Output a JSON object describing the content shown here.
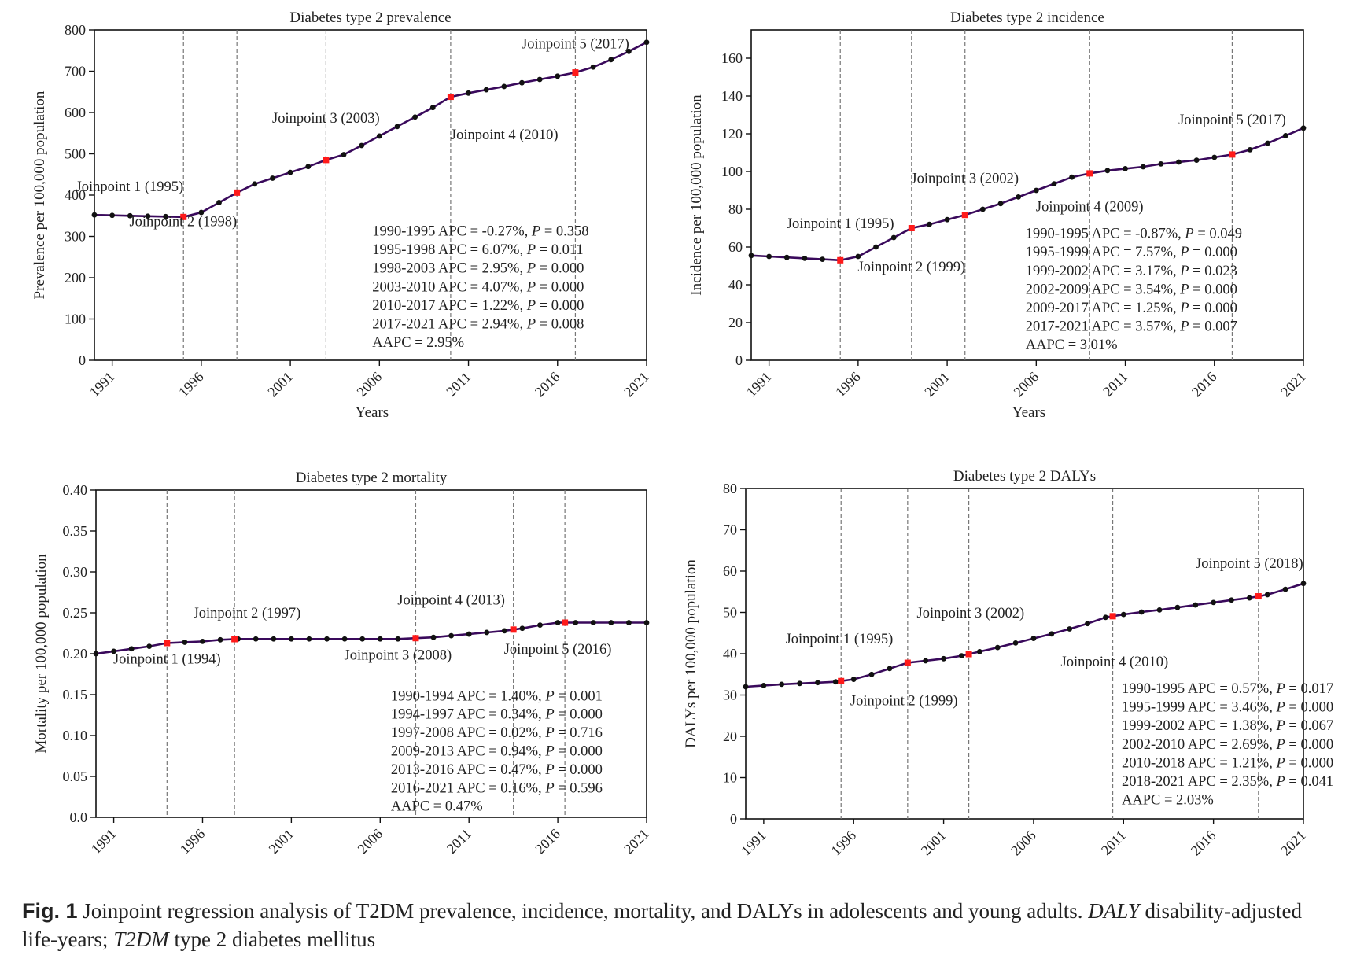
{
  "colors": {
    "line": "#3a0a5c",
    "point": "#111111",
    "joinpoint": "#ff1a1a",
    "grid": "#777777"
  },
  "caption": {
    "label": "Fig. 1",
    "text1": "  Joinpoint regression analysis of T2DM prevalence, incidence, mortality, and DALYs in adolescents and young adults. ",
    "abbr1": "DALY",
    "text2": " disability-adjusted life-years; ",
    "abbr2": "T2DM",
    "text3": " type 2 diabetes mellitus"
  },
  "chart_data": [
    {
      "type": "line",
      "title": "Diabetes type 2 prevalence",
      "xlabel": "Years",
      "ylabel": "Prevalence per 100,000 population",
      "xlim": [
        1990,
        2021
      ],
      "ylim": [
        0,
        800
      ],
      "yticks": [
        0,
        100,
        200,
        300,
        400,
        500,
        600,
        700,
        800
      ],
      "ytick_labels": [
        "0",
        "100",
        "200",
        "300",
        "400",
        "500",
        "600",
        "700",
        "800"
      ],
      "xticks": [
        1991,
        1996,
        2001,
        2006,
        2011,
        2016,
        2021
      ],
      "x": [
        1990,
        1991,
        1992,
        1993,
        1994,
        1995,
        1996,
        1997,
        1998,
        1999,
        2000,
        2001,
        2002,
        2003,
        2004,
        2005,
        2006,
        2007,
        2008,
        2009,
        2010,
        2011,
        2012,
        2013,
        2014,
        2015,
        2016,
        2017,
        2018,
        2019,
        2020,
        2021
      ],
      "values": [
        352,
        351,
        350,
        349,
        348,
        347,
        358,
        382,
        406,
        427,
        441,
        455,
        469,
        485,
        498,
        520,
        543,
        566,
        589,
        612,
        638,
        647,
        655,
        663,
        672,
        680,
        688,
        697,
        710,
        728,
        748,
        770
      ],
      "joinpoints": [
        1995,
        1998,
        2003,
        2010,
        2017
      ],
      "joinpoint_labels": [
        {
          "text": "Joinpoint 1 (1995)",
          "x": 1995,
          "y": 410,
          "anchor": "end"
        },
        {
          "text": "Joinpoint 2 (1998)",
          "x": 1998,
          "y": 325,
          "anchor": "end"
        },
        {
          "text": "Joinpoint 3 (2003)",
          "x": 2003,
          "y": 575,
          "anchor": "middle"
        },
        {
          "text": "Joinpoint 4 (2010)",
          "x": 2010,
          "y": 535,
          "anchor": "start"
        },
        {
          "text": "Joinpoint 5 (2017)",
          "x": 2017,
          "y": 755,
          "anchor": "middle"
        }
      ],
      "stats": {
        "x": 2005.6,
        "y_top": 302,
        "step": 45,
        "lines": [
          {
            "range": "1990-1995",
            "apc": "-0.27%",
            "p": "0.358"
          },
          {
            "range": "1995-1998",
            "apc": "6.07%",
            "p": "0.011"
          },
          {
            "range": "1998-2003",
            "apc": "2.95%",
            "p": "0.000"
          },
          {
            "range": "2003-2010",
            "apc": "4.07%",
            "p": "0.000"
          },
          {
            "range": "2010-2017",
            "apc": "1.22%",
            "p": "0.000"
          },
          {
            "range": "2017-2021",
            "apc": "2.94%",
            "p": "0.008"
          }
        ],
        "aapc": "AAPC = 2.95%"
      }
    },
    {
      "type": "line",
      "title": "Diabetes type 2 incidence",
      "xlabel": "Years",
      "ylabel": "Incidence per 100,000 population",
      "xlim": [
        1990,
        2021
      ],
      "ylim": [
        0,
        175
      ],
      "yticks": [
        0,
        20,
        40,
        60,
        80,
        100,
        120,
        140,
        160
      ],
      "ytick_labels": [
        "0",
        "20",
        "40",
        "60",
        "80",
        "100",
        "120",
        "140",
        "160"
      ],
      "xticks": [
        1991,
        1996,
        2001,
        2006,
        2011,
        2016,
        2021
      ],
      "x": [
        1990,
        1991,
        1992,
        1993,
        1994,
        1995,
        1996,
        1997,
        1998,
        1999,
        2000,
        2001,
        2002,
        2003,
        2004,
        2005,
        2006,
        2007,
        2008,
        2009,
        2010,
        2011,
        2012,
        2013,
        2014,
        2015,
        2016,
        2017,
        2018,
        2019,
        2020,
        2021
      ],
      "values": [
        55.5,
        55,
        54.5,
        54,
        53.5,
        53,
        55,
        60,
        65,
        70,
        72,
        74.5,
        77,
        80,
        83,
        86.5,
        90,
        93.5,
        97,
        99,
        100.5,
        101.5,
        102.5,
        104,
        105,
        106,
        107.5,
        109,
        111.5,
        115,
        119,
        123
      ],
      "joinpoints": [
        1995,
        1999,
        2002,
        2009,
        2017
      ],
      "joinpoint_labels": [
        {
          "text": "Joinpoint 1 (1995)",
          "x": 1995,
          "y": 70,
          "anchor": "middle"
        },
        {
          "text": "Joinpoint 2 (1999)",
          "x": 1999,
          "y": 47,
          "anchor": "middle"
        },
        {
          "text": "Joinpoint 3 (2002)",
          "x": 2002,
          "y": 94,
          "anchor": "middle"
        },
        {
          "text": "Joinpoint 4 (2009)",
          "x": 2009,
          "y": 79,
          "anchor": "middle"
        },
        {
          "text": "Joinpoint 5 (2017)",
          "x": 2017,
          "y": 125,
          "anchor": "middle"
        }
      ],
      "stats": {
        "x": 2005.4,
        "y_top": 64.7,
        "step": 9.8,
        "lines": [
          {
            "range": "1990-1995",
            "apc": "-0.87%",
            "p": "0.049"
          },
          {
            "range": "1995-1999",
            "apc": "7.57%",
            "p": "0.000"
          },
          {
            "range": "1999-2002",
            "apc": "3.17%",
            "p": "0.023"
          },
          {
            "range": "2002-2009",
            "apc": "3.54%",
            "p": "0.000"
          },
          {
            "range": "2009-2017",
            "apc": "1.25%",
            "p": "0.000"
          },
          {
            "range": "2017-2021",
            "apc": "3.57%",
            "p": "0.007"
          }
        ],
        "aapc": "AAPC = 3.01%"
      }
    },
    {
      "type": "line",
      "title": "Diabetes type 2 mortality",
      "xlabel": "",
      "ylabel": "Mortality per 100,000 population",
      "xlim": [
        1990,
        2021
      ],
      "ylim": [
        0,
        0.4
      ],
      "yticks": [
        0,
        0.05,
        0.1,
        0.15,
        0.2,
        0.25,
        0.3,
        0.35,
        0.4
      ],
      "ytick_labels": [
        "0.0",
        "0.05",
        "0.10",
        "0.15",
        "0.20",
        "0.25",
        "0.30",
        "0.35",
        "0.40"
      ],
      "xticks": [
        1991,
        1996,
        2001,
        2006,
        2011,
        2016,
        2021
      ],
      "x": [
        1990,
        1991,
        1992,
        1993,
        1994,
        1995,
        1996,
        1997,
        1998,
        1999,
        2000,
        2001,
        2002,
        2003,
        2004,
        2005,
        2006,
        2007,
        2008,
        2009,
        2010,
        2011,
        2012,
        2013,
        2014,
        2015,
        2016,
        2017,
        2018,
        2019,
        2020,
        2021
      ],
      "values": [
        0.2,
        0.203,
        0.206,
        0.209,
        0.213,
        0.214,
        0.215,
        0.217,
        0.218,
        0.218,
        0.218,
        0.218,
        0.218,
        0.218,
        0.218,
        0.218,
        0.218,
        0.218,
        0.219,
        0.22,
        0.222,
        0.224,
        0.226,
        0.228,
        0.231,
        0.235,
        0.238,
        0.238,
        0.238,
        0.238,
        0.238,
        0.238
      ],
      "joinpoints": [
        1994,
        1997.8,
        2008,
        2013.5,
        2016.4
      ],
      "joinpoint_labels": [
        {
          "text": "Joinpoint 1 (1994)",
          "x": 1994,
          "y": 0.188,
          "anchor": "middle"
        },
        {
          "text": "Joinpoint 2 (1997)",
          "x": 1998.5,
          "y": 0.244,
          "anchor": "middle"
        },
        {
          "text": "Joinpoint 3 (2008)",
          "x": 2007,
          "y": 0.193,
          "anchor": "middle"
        },
        {
          "text": "Joinpoint 4 (2013)",
          "x": 2010,
          "y": 0.26,
          "anchor": "middle"
        },
        {
          "text": "Joinpoint 5 (2016)",
          "x": 2016,
          "y": 0.2,
          "anchor": "middle"
        }
      ],
      "stats": {
        "x": 2006.6,
        "y_top": 0.143,
        "step": 0.0225,
        "lines": [
          {
            "range": "1990-1994",
            "apc": "1.40%",
            "p": "0.001"
          },
          {
            "range": "1994-1997",
            "apc": "0.34%",
            "p": "0.000"
          },
          {
            "range": "1997-2008",
            "apc": "0.02%",
            "p": "0.716"
          },
          {
            "range": "2009-2013",
            "apc": "0.94%",
            "p": "0.000"
          },
          {
            "range": "2013-2016",
            "apc": "0.47%",
            "p": "0.000"
          },
          {
            "range": "2016-2021",
            "apc": "0.16%",
            "p": "0.596"
          }
        ],
        "aapc": "AAPC = 0.47%"
      }
    },
    {
      "type": "line",
      "title": "Diabetes type 2 DALYs",
      "xlabel": "",
      "ylabel": "DALYs per 100,000 population",
      "xlim": [
        1990,
        2021
      ],
      "ylim": [
        0,
        80
      ],
      "yticks": [
        0,
        10,
        20,
        30,
        40,
        50,
        60,
        70,
        80
      ],
      "ytick_labels": [
        "0",
        "10",
        "20",
        "30",
        "40",
        "50",
        "60",
        "70",
        "80"
      ],
      "xticks": [
        1991,
        1996,
        2001,
        2006,
        2011,
        2016,
        2021
      ],
      "x": [
        1990,
        1991,
        1992,
        1993,
        1994,
        1995,
        1996,
        1997,
        1998,
        1999,
        2000,
        2001,
        2002,
        2003,
        2004,
        2005,
        2006,
        2007,
        2008,
        2009,
        2010,
        2011,
        2012,
        2013,
        2014,
        2015,
        2016,
        2017,
        2018,
        2019,
        2020,
        2021
      ],
      "values": [
        32,
        32.3,
        32.6,
        32.8,
        33,
        33.2,
        33.8,
        35,
        36.4,
        37.8,
        38.3,
        38.8,
        39.5,
        40.5,
        41.5,
        42.6,
        43.7,
        44.8,
        46,
        47.3,
        48.8,
        49.5,
        50.1,
        50.6,
        51.2,
        51.8,
        52.4,
        53,
        53.5,
        54.3,
        55.6,
        57
      ],
      "joinpoints": [
        1995.3,
        1999,
        2002.4,
        2010.4,
        2018.5
      ],
      "joinpoint_labels": [
        {
          "text": "Joinpoint 1 (1995)",
          "x": 1995.2,
          "y": 42.5,
          "anchor": "middle"
        },
        {
          "text": "Joinpoint 2 (1999)",
          "x": 1998.8,
          "y": 27.5,
          "anchor": "middle"
        },
        {
          "text": "Joinpoint 3 (2002)",
          "x": 2002.5,
          "y": 48.8,
          "anchor": "middle"
        },
        {
          "text": "Joinpoint 4 (2010)",
          "x": 2010.5,
          "y": 37,
          "anchor": "middle"
        },
        {
          "text": "Joinpoint 5 (2018)",
          "x": 2018,
          "y": 60.8,
          "anchor": "middle"
        }
      ],
      "stats": {
        "x": 2010.9,
        "y_top": 30.5,
        "step": 4.5,
        "lines": [
          {
            "range": "1990-1995",
            "apc": "0.57%",
            "p": "0.017"
          },
          {
            "range": "1995-1999",
            "apc": "3.46%",
            "p": "0.000"
          },
          {
            "range": "1999-2002",
            "apc": "1.38%",
            "p": "0.067"
          },
          {
            "range": "2002-2010",
            "apc": "2.69%",
            "p": "0.000"
          },
          {
            "range": "2010-2018",
            "apc": "1.21%",
            "p": "0.000"
          },
          {
            "range": "2018-2021",
            "apc": "2.35%",
            "p": "0.041"
          }
        ],
        "aapc": "AAPC = 2.03%"
      }
    }
  ]
}
